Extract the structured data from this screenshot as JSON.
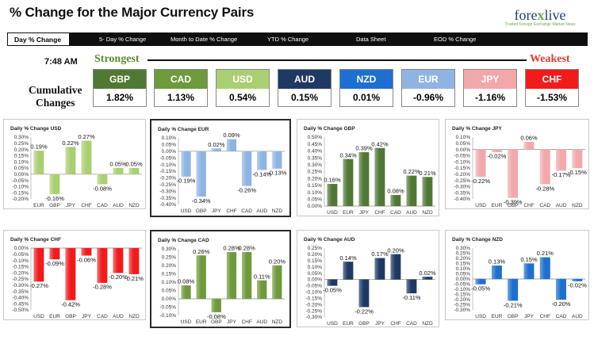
{
  "header": {
    "title": "% Change for the Major Currency Pairs",
    "logo": {
      "text_a": "fore",
      "text_x": "x",
      "text_b": "live",
      "tagline": "Trusted Foreign Exchange Market News"
    }
  },
  "nav": {
    "tabs": [
      {
        "label": "Day % Change",
        "active": true
      },
      {
        "label": "5- Day % Change",
        "active": false
      },
      {
        "label": "Month to Date % Change",
        "active": false
      },
      {
        "label": "YTD % Change",
        "active": false
      },
      {
        "label": "Data Sheet",
        "active": false
      },
      {
        "label": "EOD % Change",
        "active": false
      }
    ]
  },
  "summary": {
    "time": "7:48 AM",
    "strongest_label": "Strongest",
    "weakest_label": "Weakest",
    "row_label_1": "Cumulative",
    "row_label_2": "Changes",
    "currencies": [
      {
        "code": "GBP",
        "value": "1.82%",
        "color": "#507834"
      },
      {
        "code": "CAD",
        "value": "1.13%",
        "color": "#6e9a3c"
      },
      {
        "code": "USD",
        "value": "0.54%",
        "color": "#a9cf72"
      },
      {
        "code": "AUD",
        "value": "0.15%",
        "color": "#1f3964"
      },
      {
        "code": "NZD",
        "value": "0.01%",
        "color": "#1e6fd0"
      },
      {
        "code": "EUR",
        "value": "-0.96%",
        "color": "#8fb4e3"
      },
      {
        "code": "JPY",
        "value": "-1.16%",
        "color": "#f2a8ab"
      },
      {
        "code": "CHF",
        "value": "-1.53%",
        "color": "#f21b1b"
      }
    ]
  },
  "chart_data": [
    {
      "type": "bar",
      "title": "Daily % Change USD",
      "color": "#a9cf72",
      "categories": [
        "EUR",
        "GBP",
        "JPY",
        "CHF",
        "CAD",
        "AUD",
        "NZD"
      ],
      "values": [
        0.19,
        -0.16,
        0.22,
        0.27,
        -0.08,
        0.05,
        0.05
      ],
      "labels": [
        "0.19%",
        "-0.16%",
        "0.22%",
        "0.27%",
        "-0.08%",
        "0.05%",
        "0.05%"
      ],
      "ylim": [
        -0.2,
        0.3
      ],
      "yticks": [
        "0.30%",
        "0.25%",
        "0.20%",
        "0.15%",
        "0.10%",
        "0.05%",
        "0.00%",
        "-0.05%",
        "-0.10%",
        "-0.15%",
        "-0.20%"
      ]
    },
    {
      "type": "bar",
      "title": "Daily % Change EUR",
      "color": "#8fb4e3",
      "categories": [
        "USD",
        "GBP",
        "JPY",
        "CHF",
        "CAD",
        "AUD",
        "NZD"
      ],
      "values": [
        -0.19,
        -0.34,
        0.02,
        0.09,
        -0.26,
        -0.14,
        -0.13
      ],
      "labels": [
        "-0.19%",
        "-0.34%",
        "0.02%",
        "0.09%",
        "-0.26%",
        "-0.14%",
        "-0.13%"
      ],
      "ylim": [
        -0.4,
        0.1
      ],
      "yticks": [
        "0.10%",
        "0.05%",
        "0.00%",
        "-0.05%",
        "-0.10%",
        "-0.15%",
        "-0.20%",
        "-0.25%",
        "-0.30%",
        "-0.35%",
        "-0.40%"
      ]
    },
    {
      "type": "bar",
      "title": "Daily % Change GBP",
      "color": "#507834",
      "categories": [
        "USD",
        "EUR",
        "JPY",
        "CHF",
        "CAD",
        "AUD",
        "NZD"
      ],
      "values": [
        0.16,
        0.34,
        0.39,
        0.42,
        0.08,
        0.22,
        0.21
      ],
      "labels": [
        "0.16%",
        "0.34%",
        "0.39%",
        "0.42%",
        "0.08%",
        "0.22%",
        "0.21%"
      ],
      "ylim": [
        0.0,
        0.5
      ],
      "yticks": [
        "0.50%",
        "0.45%",
        "0.40%",
        "0.35%",
        "0.30%",
        "0.25%",
        "0.20%",
        "0.15%",
        "0.10%",
        "0.05%",
        "0.00%"
      ]
    },
    {
      "type": "bar",
      "title": "Daily % Change JPY",
      "color": "#f2a8ab",
      "categories": [
        "USD",
        "EUR",
        "GBP",
        "CHF",
        "CAD",
        "AUD",
        "NZD"
      ],
      "values": [
        -0.22,
        -0.02,
        -0.39,
        0.06,
        -0.28,
        -0.17,
        -0.15
      ],
      "labels": [
        "-0.22%",
        "-0.02%",
        "-0.39%",
        "0.06%",
        "-0.28%",
        "-0.17%",
        "-0.15%"
      ],
      "ylim": [
        -0.4,
        0.1
      ],
      "yticks": [
        "0.10%",
        "0.05%",
        "0.00%",
        "-0.05%",
        "-0.10%",
        "-0.15%",
        "-0.20%",
        "-0.25%",
        "-0.30%",
        "-0.35%",
        "-0.40%"
      ]
    },
    {
      "type": "bar",
      "title": "Daily % Change CHF",
      "color": "#f21b1b",
      "categories": [
        "USD",
        "EUR",
        "GBP",
        "JPY",
        "CAD",
        "AUD",
        "NZD"
      ],
      "values": [
        -0.27,
        -0.09,
        -0.42,
        -0.06,
        -0.28,
        -0.2,
        -0.21
      ],
      "labels": [
        "-0.27%",
        "-0.09%",
        "-0.42%",
        "-0.06%",
        "-0.28%",
        "-0.20%",
        "-0.21%"
      ],
      "ylim": [
        -0.5,
        0.0
      ],
      "yticks": [
        "0.00%",
        "-0.05%",
        "-0.10%",
        "-0.15%",
        "-0.20%",
        "-0.25%",
        "-0.30%",
        "-0.35%",
        "-0.40%",
        "-0.45%",
        "-0.50%"
      ]
    },
    {
      "type": "bar",
      "title": "Daily % Change CAD",
      "color": "#6e9a3c",
      "categories": [
        "USD",
        "EUR",
        "GBP",
        "JPY",
        "CHF",
        "AUD",
        "NZD"
      ],
      "values": [
        0.08,
        0.26,
        -0.08,
        0.28,
        0.28,
        0.11,
        0.2
      ],
      "labels": [
        "0.08%",
        "0.26%",
        "-0.08%",
        "0.28%",
        "0.28%",
        "0.11%",
        "0.20%"
      ],
      "ylim": [
        -0.1,
        0.3
      ],
      "yticks": [
        "0.30%",
        "0.25%",
        "0.20%",
        "0.15%",
        "0.10%",
        "0.05%",
        "0.00%",
        "-0.05%",
        "-0.10%"
      ]
    },
    {
      "type": "bar",
      "title": "Daily % Change AUD",
      "color": "#1f3964",
      "categories": [
        "USD",
        "EUR",
        "GBP",
        "JPY",
        "CHF",
        "CAD",
        "NZD"
      ],
      "values": [
        -0.05,
        0.14,
        -0.22,
        0.17,
        0.2,
        -0.11,
        0.02
      ],
      "labels": [
        "-0.05%",
        "0.14%",
        "-0.22%",
        "0.17%",
        "0.20%",
        "-0.11%",
        "0.02%"
      ],
      "ylim": [
        -0.3,
        0.25
      ],
      "yticks": [
        "0.25%",
        "0.20%",
        "0.15%",
        "0.10%",
        "0.05%",
        "0.00%",
        "-0.05%",
        "-0.10%",
        "-0.15%",
        "-0.20%",
        "-0.25%",
        "-0.30%"
      ]
    },
    {
      "type": "bar",
      "title": "Daily % Change NZD",
      "color": "#1e6fd0",
      "categories": [
        "USD",
        "EUR",
        "GBP",
        "JPY",
        "CHF",
        "CAD",
        "AUD"
      ],
      "values": [
        -0.05,
        0.13,
        -0.21,
        0.15,
        0.21,
        -0.2,
        -0.02
      ],
      "labels": [
        "-0.05%",
        "0.13%",
        "-0.21%",
        "0.15%",
        "0.21%",
        "-0.20%",
        "-0.02%"
      ],
      "ylim": [
        -0.3,
        0.3
      ],
      "yticks": [
        "0.30%",
        "0.25%",
        "0.20%",
        "0.15%",
        "0.10%",
        "0.05%",
        "0.00%",
        "-0.05%",
        "-0.10%",
        "-0.15%",
        "-0.20%",
        "-0.25%",
        "-0.30%"
      ]
    }
  ]
}
